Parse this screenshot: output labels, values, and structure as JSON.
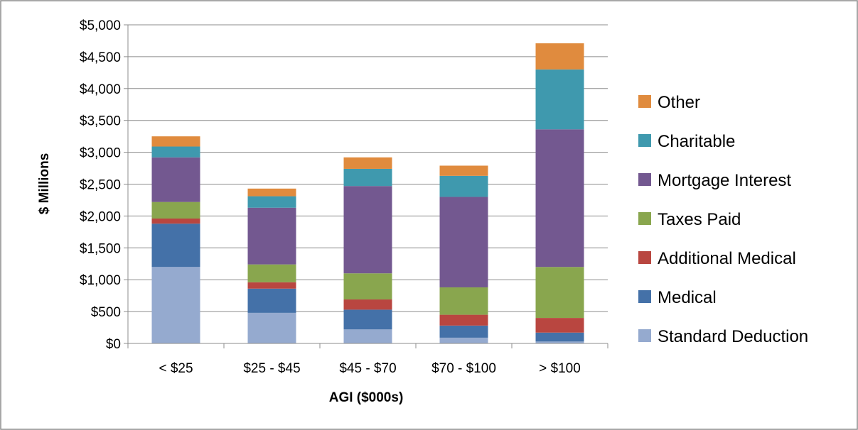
{
  "chart_data": {
    "type": "bar",
    "stacked": true,
    "xlabel": "AGI ($000s)",
    "ylabel": "$ Millions",
    "ylim": [
      0,
      5000
    ],
    "yticks": [
      0,
      500,
      1000,
      1500,
      2000,
      2500,
      3000,
      3500,
      4000,
      4500,
      5000
    ],
    "ytick_labels": [
      "$0",
      "$500",
      "$1,000",
      "$1,500",
      "$2,000",
      "$2,500",
      "$3,000",
      "$3,500",
      "$4,000",
      "$4,500",
      "$5,000"
    ],
    "categories": [
      "< $25",
      "$25 - $45",
      "$45 - $70",
      "$70 - $100",
      "> $100"
    ],
    "grid": true,
    "legend_position": "right",
    "series": [
      {
        "name": "Standard Deduction",
        "color": "#95AACF",
        "values": [
          1200,
          480,
          220,
          90,
          30
        ]
      },
      {
        "name": "Medical",
        "color": "#4471A8",
        "values": [
          680,
          380,
          310,
          190,
          140
        ]
      },
      {
        "name": "Additional Medical",
        "color": "#B94640",
        "values": [
          80,
          100,
          160,
          170,
          230
        ]
      },
      {
        "name": "Taxes Paid",
        "color": "#89A64E",
        "values": [
          260,
          280,
          410,
          430,
          800
        ]
      },
      {
        "name": "Mortgage Interest",
        "color": "#735890",
        "values": [
          700,
          890,
          1370,
          1420,
          2160
        ]
      },
      {
        "name": "Charitable",
        "color": "#3F99AE",
        "values": [
          170,
          180,
          270,
          330,
          940
        ]
      },
      {
        "name": "Other",
        "color": "#E08B3E",
        "values": [
          160,
          120,
          180,
          160,
          410
        ]
      }
    ]
  }
}
